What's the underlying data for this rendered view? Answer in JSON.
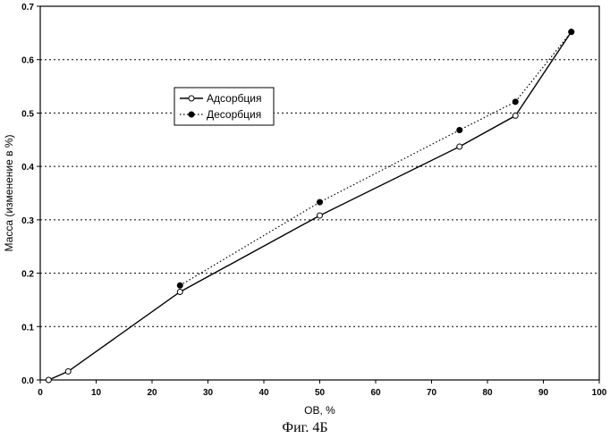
{
  "caption": "Фиг. 4Б",
  "chart_data": {
    "type": "line",
    "xlabel": "ОВ, %",
    "ylabel": "Масса (изменение в %)",
    "xlim": [
      0,
      100
    ],
    "ylim": [
      0,
      0.7
    ],
    "xticks": [
      0,
      10,
      20,
      30,
      40,
      50,
      60,
      70,
      80,
      90,
      100
    ],
    "yticks": [
      0.0,
      0.1,
      0.2,
      0.3,
      0.4,
      0.5,
      0.6,
      0.7
    ],
    "ytick_labels": [
      "0.0",
      "0.1",
      "0.2",
      "0.3",
      "0.4",
      "0.5",
      "0.6",
      "0.7"
    ],
    "grid": "horizontal dotted",
    "legend_position": "upper-left inside plot",
    "series": [
      {
        "name": "Адсорбция",
        "line_style": "solid",
        "marker": "open-circle",
        "x": [
          1.5,
          5,
          25,
          50,
          75,
          85,
          95
        ],
        "y": [
          0.0,
          0.016,
          0.165,
          0.308,
          0.437,
          0.495,
          0.652
        ]
      },
      {
        "name": "Десорбция",
        "line_style": "dotted",
        "marker": "filled-circle",
        "x": [
          25,
          50,
          75,
          85,
          95
        ],
        "y": [
          0.177,
          0.333,
          0.468,
          0.521,
          0.652
        ]
      }
    ]
  }
}
